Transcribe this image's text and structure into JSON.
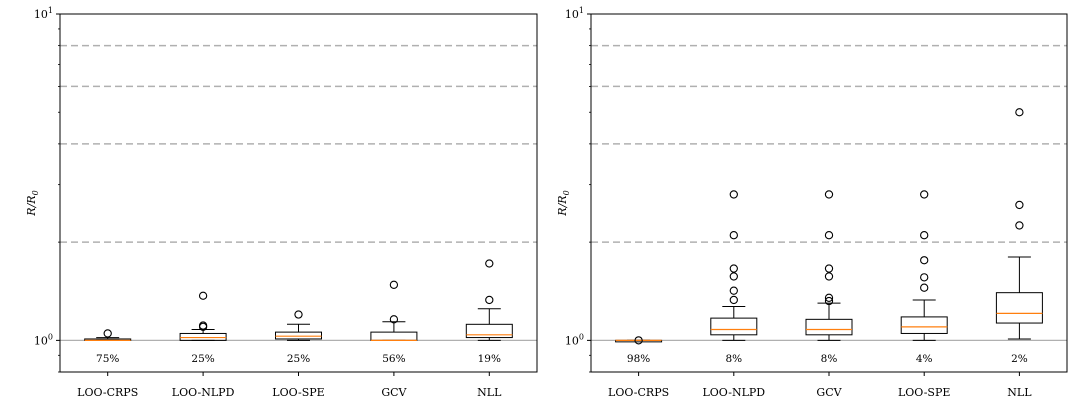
{
  "chart_data": [
    {
      "type": "boxplot",
      "ylabel": "R/R0",
      "yscale": "log",
      "ylim": [
        0.8,
        10
      ],
      "yticks": [
        {
          "value": 1,
          "label": "10^0"
        },
        {
          "value": 10,
          "label": "10^1"
        }
      ],
      "reference_lines": {
        "solid": [
          1.0
        ],
        "dashed": [
          2.0,
          4.0,
          6.0,
          8.0
        ]
      },
      "categories": [
        "LOO-CRPS",
        "LOO-NLPD",
        "LOO-SPE",
        "GCV",
        "NLL"
      ],
      "percent_labels": [
        "75%",
        "25%",
        "25%",
        "56%",
        "19%"
      ],
      "boxes": [
        {
          "whislo": 1.0,
          "q1": 1.0,
          "med": 1.0,
          "q3": 1.01,
          "whishi": 1.02,
          "fliers": [
            1.05
          ]
        },
        {
          "whislo": 1.0,
          "q1": 1.0,
          "med": 1.02,
          "q3": 1.05,
          "whishi": 1.08,
          "fliers": [
            1.1,
            1.11,
            1.37
          ]
        },
        {
          "whislo": 1.0,
          "q1": 1.01,
          "med": 1.03,
          "q3": 1.06,
          "whishi": 1.12,
          "fliers": [
            1.2
          ]
        },
        {
          "whislo": 1.0,
          "q1": 1.0,
          "med": 1.0,
          "q3": 1.06,
          "whishi": 1.14,
          "fliers": [
            1.16,
            1.48
          ]
        },
        {
          "whislo": 1.0,
          "q1": 1.02,
          "med": 1.04,
          "q3": 1.12,
          "whishi": 1.25,
          "fliers": [
            1.33,
            1.72
          ]
        }
      ]
    },
    {
      "type": "boxplot",
      "ylabel": "R/R0",
      "yscale": "log",
      "ylim": [
        0.8,
        10
      ],
      "yticks": [
        {
          "value": 1,
          "label": "10^0"
        },
        {
          "value": 10,
          "label": "10^1"
        }
      ],
      "reference_lines": {
        "solid": [
          1.0
        ],
        "dashed": [
          2.0,
          4.0,
          6.0,
          8.0
        ]
      },
      "categories": [
        "LOO-CRPS",
        "LOO-NLPD",
        "GCV",
        "LOO-SPE",
        "NLL"
      ],
      "percent_labels": [
        "98%",
        "8%",
        "8%",
        "4%",
        "2%"
      ],
      "boxes": [
        {
          "whislo": 1.0,
          "q1": 1.0,
          "med": 1.0,
          "q3": 1.0,
          "whishi": 1.0,
          "fliers": [
            1.0
          ]
        },
        {
          "whislo": 1.0,
          "q1": 1.04,
          "med": 1.08,
          "q3": 1.17,
          "whishi": 1.27,
          "fliers": [
            1.33,
            1.42,
            1.57,
            1.66,
            2.1,
            2.8
          ]
        },
        {
          "whislo": 1.0,
          "q1": 1.04,
          "med": 1.08,
          "q3": 1.16,
          "whishi": 1.3,
          "fliers": [
            1.32,
            1.35,
            1.57,
            1.66,
            2.1,
            2.8
          ]
        },
        {
          "whislo": 1.0,
          "q1": 1.05,
          "med": 1.1,
          "q3": 1.18,
          "whishi": 1.33,
          "fliers": [
            1.45,
            1.56,
            1.76,
            2.1,
            2.8
          ]
        },
        {
          "whislo": 1.01,
          "q1": 1.13,
          "med": 1.21,
          "q3": 1.4,
          "whishi": 1.8,
          "fliers": [
            2.25,
            2.6,
            5.0
          ]
        }
      ]
    }
  ],
  "colors": {
    "median": "#ff7f0e",
    "box": "#000000",
    "dashed_line": "#b0b0b0",
    "solid_line": "#b0b0b0"
  }
}
